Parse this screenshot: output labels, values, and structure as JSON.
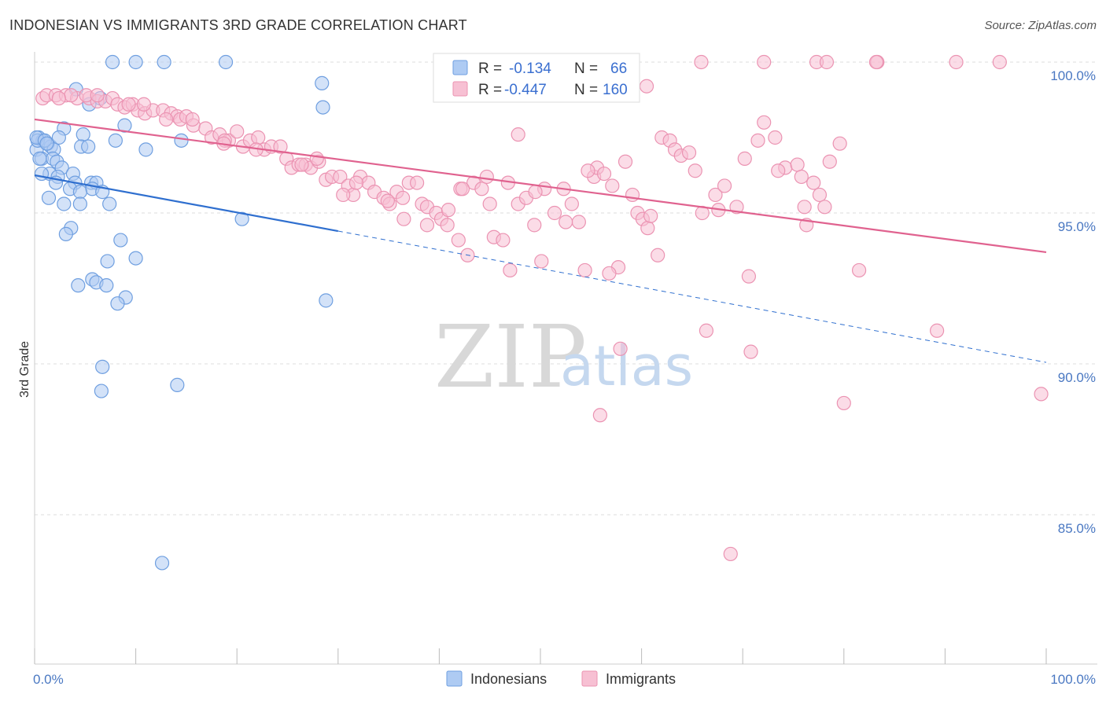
{
  "header": {
    "title": "INDONESIAN VS IMMIGRANTS 3RD GRADE CORRELATION CHART",
    "source": "Source: ZipAtlas.com"
  },
  "legend_box": {
    "rows": [
      {
        "r_label": "R =",
        "r_value": "-0.134",
        "n_label": "N =",
        "n_value": "66"
      },
      {
        "r_label": "R =",
        "r_value": "-0.447",
        "n_label": "N =",
        "n_value": "160"
      }
    ]
  },
  "bottom_legend": [
    "Indonesians",
    "Immigrants"
  ],
  "watermark": {
    "zip": "ZIP",
    "atlas": "atlas"
  },
  "colors": {
    "blue_fill": "#aecbf3",
    "blue_stroke": "#6f9fe0",
    "blue_line": "#2f6fcf",
    "pink_fill": "#f7c0d3",
    "pink_stroke": "#eb93b2",
    "pink_line": "#e0628f"
  },
  "chart_data": {
    "type": "scatter",
    "title": "INDONESIAN VS IMMIGRANTS 3RD GRADE CORRELATION CHART",
    "ylabel": "3rd Grade",
    "xlim": [
      0,
      100
    ],
    "ylim": [
      80.2,
      100.8
    ],
    "x_tick_labels": [
      {
        "value": 0,
        "label": "0.0%"
      },
      {
        "value": 100,
        "label": "100.0%"
      }
    ],
    "y_tick_labels": [
      {
        "value": 100,
        "label": "100.0%"
      },
      {
        "value": 95,
        "label": "95.0%"
      },
      {
        "value": 90,
        "label": "90.0%"
      },
      {
        "value": 85,
        "label": "85.0%"
      }
    ],
    "grid": "dashed horizontal",
    "legend_position": "top-center",
    "series": [
      {
        "name": "Indonesians",
        "trend": {
          "x0": 0,
          "y0": 96.25,
          "x1": 30,
          "y1": 94.4,
          "dashed_to_x": 100,
          "dashed_to_y": 90.05
        },
        "points": [
          [
            7.7,
            100
          ],
          [
            10,
            100
          ],
          [
            12.8,
            100
          ],
          [
            18.9,
            100
          ],
          [
            4.1,
            99.1
          ],
          [
            28.4,
            99.3
          ],
          [
            6.5,
            98.8
          ],
          [
            5.4,
            98.6
          ],
          [
            28.5,
            98.5
          ],
          [
            2.9,
            97.8
          ],
          [
            8.9,
            97.9
          ],
          [
            0.4,
            97.5
          ],
          [
            0.8,
            97.4
          ],
          [
            1.3,
            97.3
          ],
          [
            1.6,
            97.2
          ],
          [
            2.4,
            97.5
          ],
          [
            4.8,
            97.6
          ],
          [
            8,
            97.4
          ],
          [
            14.5,
            97.4
          ],
          [
            4.6,
            97.2
          ],
          [
            5.3,
            97.2
          ],
          [
            11,
            97.1
          ],
          [
            0.2,
            97.1
          ],
          [
            1.9,
            97.1
          ],
          [
            0.7,
            96.8
          ],
          [
            1.8,
            96.8
          ],
          [
            2.2,
            96.7
          ],
          [
            2.7,
            96.5
          ],
          [
            1.5,
            96.3
          ],
          [
            3.8,
            96.3
          ],
          [
            0.7,
            96.3
          ],
          [
            2.3,
            96.2
          ],
          [
            2.1,
            96
          ],
          [
            4,
            96
          ],
          [
            5.6,
            96
          ],
          [
            6.1,
            96
          ],
          [
            3.5,
            95.8
          ],
          [
            5.7,
            95.8
          ],
          [
            4.5,
            95.7
          ],
          [
            6.7,
            95.7
          ],
          [
            1.4,
            95.5
          ],
          [
            2.9,
            95.3
          ],
          [
            4.5,
            95.3
          ],
          [
            7.4,
            95.3
          ],
          [
            20.5,
            94.8
          ],
          [
            3.6,
            94.5
          ],
          [
            3.1,
            94.3
          ],
          [
            8.5,
            94.1
          ],
          [
            10,
            93.5
          ],
          [
            7.2,
            93.4
          ],
          [
            5.7,
            92.8
          ],
          [
            6.1,
            92.7
          ],
          [
            7.1,
            92.6
          ],
          [
            4.3,
            92.6
          ],
          [
            9,
            92.2
          ],
          [
            8.2,
            92
          ],
          [
            28.8,
            92.1
          ],
          [
            6.7,
            89.9
          ],
          [
            14.1,
            89.3
          ],
          [
            6.6,
            89.1
          ],
          [
            12.6,
            83.4
          ],
          [
            0.3,
            97.4
          ],
          [
            0.2,
            97.5
          ],
          [
            1,
            97.4
          ],
          [
            1.2,
            97.3
          ],
          [
            0.5,
            96.8
          ]
        ]
      },
      {
        "name": "Immigrants",
        "trend": {
          "x0": 0,
          "y0": 98.1,
          "x1": 100,
          "y1": 93.7
        },
        "points": [
          [
            65.9,
            100
          ],
          [
            72.1,
            100
          ],
          [
            77.3,
            100
          ],
          [
            78.3,
            100
          ],
          [
            83.3,
            100
          ],
          [
            91.1,
            100
          ],
          [
            95.4,
            100
          ],
          [
            0.8,
            98.8
          ],
          [
            1.2,
            98.9
          ],
          [
            2.1,
            98.9
          ],
          [
            3.1,
            98.9
          ],
          [
            4.2,
            98.8
          ],
          [
            5.4,
            98.8
          ],
          [
            6.2,
            98.7
          ],
          [
            7,
            98.7
          ],
          [
            7.7,
            98.8
          ],
          [
            8.2,
            98.6
          ],
          [
            8.9,
            98.5
          ],
          [
            9.7,
            98.6
          ],
          [
            10.2,
            98.4
          ],
          [
            10.9,
            98.3
          ],
          [
            11.7,
            98.4
          ],
          [
            12.7,
            98.4
          ],
          [
            13.5,
            98.3
          ],
          [
            14.1,
            98.2
          ],
          [
            14.4,
            98.1
          ],
          [
            15,
            98.2
          ],
          [
            15.7,
            97.9
          ],
          [
            16.9,
            97.8
          ],
          [
            17.5,
            97.5
          ],
          [
            18.3,
            97.6
          ],
          [
            19.2,
            97.4
          ],
          [
            20,
            97.7
          ],
          [
            20.6,
            97.2
          ],
          [
            21.3,
            97.4
          ],
          [
            22.1,
            97.5
          ],
          [
            22.7,
            97.1
          ],
          [
            23.4,
            97.2
          ],
          [
            24.3,
            97.2
          ],
          [
            24.9,
            96.8
          ],
          [
            25.4,
            96.5
          ],
          [
            26.1,
            96.6
          ],
          [
            26.8,
            96.6
          ],
          [
            27.3,
            96.5
          ],
          [
            28.1,
            96.7
          ],
          [
            28.8,
            96.1
          ],
          [
            29.4,
            96.2
          ],
          [
            30.2,
            96.2
          ],
          [
            31,
            95.9
          ],
          [
            31.5,
            95.6
          ],
          [
            32.2,
            96.2
          ],
          [
            33,
            96
          ],
          [
            33.6,
            95.7
          ],
          [
            34.5,
            95.5
          ],
          [
            35.1,
            95.3
          ],
          [
            35.8,
            95.7
          ],
          [
            36.4,
            95.5
          ],
          [
            37,
            96
          ],
          [
            37.8,
            96
          ],
          [
            38.3,
            95.3
          ],
          [
            38.8,
            95.2
          ],
          [
            39.7,
            95
          ],
          [
            40.2,
            94.8
          ],
          [
            40.9,
            95.1
          ],
          [
            41.9,
            94.1
          ],
          [
            42.1,
            95.8
          ],
          [
            42.8,
            93.6
          ],
          [
            43.4,
            96
          ],
          [
            44.2,
            95.8
          ],
          [
            45,
            95.3
          ],
          [
            45.4,
            94.2
          ],
          [
            46.3,
            94.1
          ],
          [
            47,
            93.1
          ],
          [
            47.8,
            95.3
          ],
          [
            48.6,
            95.5
          ],
          [
            49.4,
            94.6
          ],
          [
            50.1,
            93.4
          ],
          [
            50.4,
            95.8
          ],
          [
            51.4,
            95
          ],
          [
            52.3,
            95.8
          ],
          [
            53.1,
            95.3
          ],
          [
            53.8,
            94.7
          ],
          [
            54.4,
            93.1
          ],
          [
            55.3,
            96.2
          ],
          [
            55.6,
            96.5
          ],
          [
            56.3,
            96.3
          ],
          [
            57.1,
            95.9
          ],
          [
            57.7,
            93.2
          ],
          [
            57.9,
            90.5
          ],
          [
            58.4,
            96.7
          ],
          [
            59.1,
            95.6
          ],
          [
            59.6,
            95
          ],
          [
            60.1,
            94.8
          ],
          [
            60.6,
            94.5
          ],
          [
            61.6,
            93.6
          ],
          [
            62,
            97.5
          ],
          [
            62.8,
            97.4
          ],
          [
            63.3,
            97.1
          ],
          [
            63.9,
            96.9
          ],
          [
            64.7,
            97
          ],
          [
            65.3,
            96.4
          ],
          [
            66,
            95
          ],
          [
            66.4,
            91.1
          ],
          [
            67.3,
            95.6
          ],
          [
            68.2,
            95.9
          ],
          [
            68.8,
            83.7
          ],
          [
            69.4,
            95.2
          ],
          [
            70.2,
            96.8
          ],
          [
            70.6,
            92.9
          ],
          [
            70.8,
            90.4
          ],
          [
            71.5,
            97.4
          ],
          [
            72.1,
            98
          ],
          [
            73.2,
            97.5
          ],
          [
            74.2,
            96.5
          ],
          [
            75.4,
            96.6
          ],
          [
            76.1,
            95.2
          ],
          [
            76.3,
            94.6
          ],
          [
            77,
            96
          ],
          [
            77.6,
            95.6
          ],
          [
            78.1,
            95.2
          ],
          [
            78.6,
            96.7
          ],
          [
            79.6,
            97.3
          ],
          [
            80,
            88.7
          ],
          [
            81.5,
            93.1
          ],
          [
            83.2,
            100
          ],
          [
            89.2,
            91.1
          ],
          [
            99.5,
            89
          ],
          [
            5.1,
            98.9
          ],
          [
            10.8,
            98.6
          ],
          [
            18.8,
            97.4
          ],
          [
            21.9,
            97.1
          ],
          [
            27.9,
            96.8
          ],
          [
            31.8,
            96
          ],
          [
            40.8,
            94.6
          ],
          [
            44.7,
            96.2
          ],
          [
            47.8,
            97.6
          ],
          [
            52.5,
            94.7
          ],
          [
            54.7,
            96.4
          ],
          [
            56.8,
            93
          ],
          [
            60.9,
            94.9
          ],
          [
            67.6,
            95.1
          ],
          [
            75.8,
            96.2
          ],
          [
            55.9,
            88.3
          ],
          [
            73.5,
            96.4
          ],
          [
            42.3,
            95.8
          ],
          [
            38.8,
            94.6
          ],
          [
            34.9,
            95.4
          ],
          [
            30.5,
            95.6
          ],
          [
            26.4,
            96.6
          ],
          [
            18.7,
            97.3
          ],
          [
            15.6,
            98.1
          ],
          [
            13,
            98.1
          ],
          [
            9.3,
            98.6
          ],
          [
            6.2,
            98.9
          ],
          [
            3.6,
            98.9
          ],
          [
            2.4,
            98.8
          ],
          [
            60.5,
            99.2
          ],
          [
            46.8,
            96
          ],
          [
            36.5,
            94.8
          ],
          [
            49.5,
            95.7
          ]
        ]
      }
    ]
  }
}
